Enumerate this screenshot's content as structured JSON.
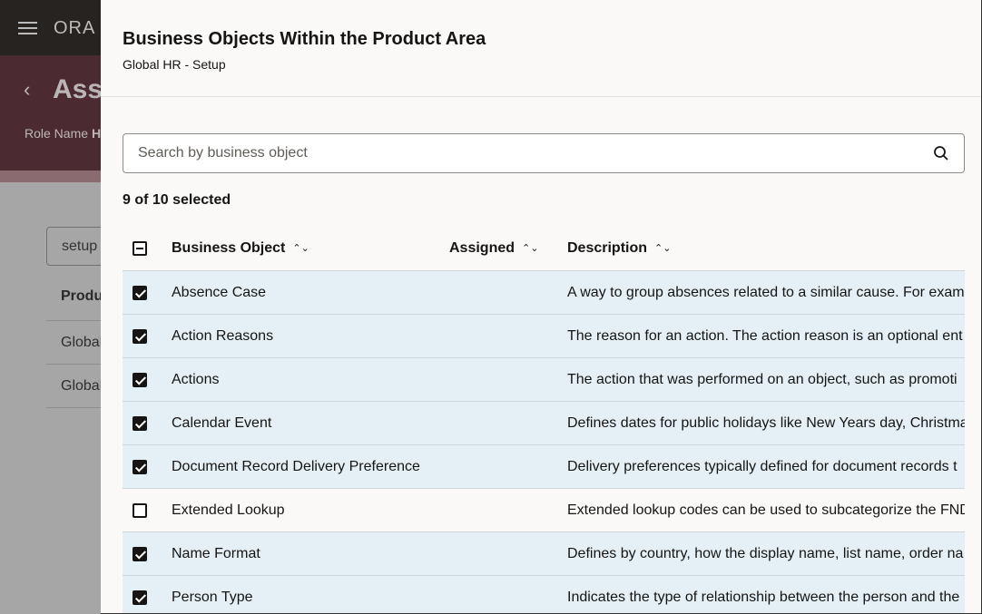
{
  "background": {
    "logo": "ORA",
    "title": "Assi",
    "role_label": "Role Name",
    "role_value": "H",
    "search_value": "setup",
    "column": "Produ",
    "rows": [
      "Global",
      "Global"
    ]
  },
  "drawer": {
    "title": "Business Objects Within the Product Area",
    "subtitle": "Global HR - Setup",
    "search_placeholder": "Search by business object",
    "selection_count": "9 of 10 selected",
    "columns": {
      "object": "Business Object",
      "assigned": "Assigned",
      "description": "Description"
    },
    "rows": [
      {
        "name": "Absence Case",
        "selected": true,
        "description": "A way to group absences related to a similar cause. For examp"
      },
      {
        "name": "Action Reasons",
        "selected": true,
        "description": "The reason for an action. The action reason is an optional ent"
      },
      {
        "name": "Actions",
        "selected": true,
        "description": "The action that was performed on an object, such as promoti"
      },
      {
        "name": "Calendar Event",
        "selected": true,
        "description": "Defines dates for public holidays like New Years day, Christma"
      },
      {
        "name": "Document Record Delivery Preference",
        "selected": true,
        "description": "Delivery preferences typically defined for document records t"
      },
      {
        "name": "Extended Lookup",
        "selected": false,
        "description": "Extended lookup codes can be used to subcategorize the FND"
      },
      {
        "name": "Name Format",
        "selected": true,
        "description": "Defines by country, how the display name, list name, order na"
      },
      {
        "name": "Person Type",
        "selected": true,
        "description": "Indicates the type of relationship between the person and the"
      }
    ]
  }
}
